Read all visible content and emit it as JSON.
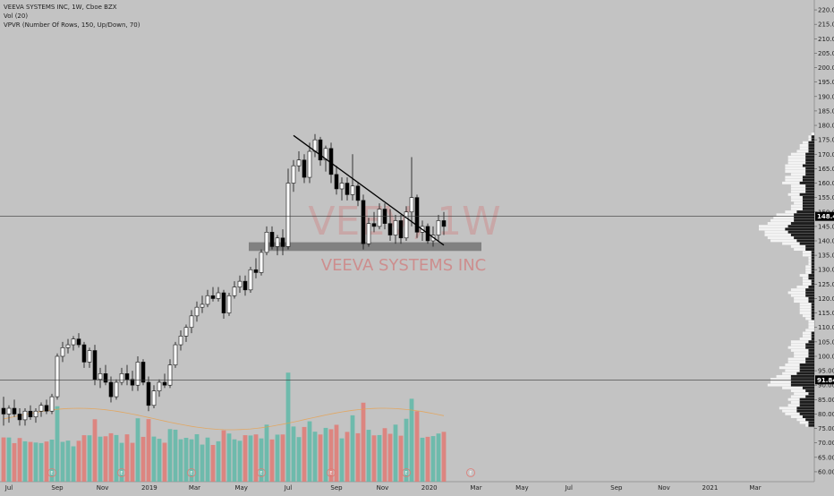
{
  "legend": {
    "line1": "VEEVA SYSTEMS INC, 1W, Cboe BZX",
    "line2": "Vol (20)",
    "line3": "VPVR (Number Of Rows, 150, Up/Down, 70)"
  },
  "watermark": {
    "symbol": "VEEV, 1W",
    "name": "VEEVA SYSTEMS INC"
  },
  "colors": {
    "background": "#c3c3c3",
    "up_candle": "#ffffff",
    "down_candle": "#000000",
    "volume_up": "#5fb8a8",
    "volume_down": "#e07a74",
    "vpvr_up": "#ffffff",
    "vpvr_down": "#000000",
    "support_zone": "#7a7a7a",
    "trendline": "#000000",
    "price_tag": "#000000",
    "volume_ma": "#e8a04c"
  },
  "chart_data": {
    "type": "candlestick",
    "interval": "1W",
    "x_ticks": [
      "Jul",
      "Sep",
      "Nov",
      "2019",
      "Mar",
      "May",
      "Jul",
      "Sep",
      "Nov",
      "2020",
      "Mar",
      "May",
      "Jul",
      "Sep",
      "Nov",
      "2021",
      "Mar"
    ],
    "y_ticks": [
      60,
      65,
      70,
      75,
      80,
      85,
      90,
      95,
      100,
      105,
      110,
      115,
      120,
      125,
      130,
      135,
      140,
      145,
      150,
      155,
      160,
      165,
      170,
      175,
      180,
      185,
      190,
      195,
      200,
      205,
      210,
      215,
      220
    ],
    "ylim": [
      57.5,
      222.5
    ],
    "price_tags": [
      148.47,
      91.84
    ],
    "support_zone": [
      136.5,
      139.5
    ],
    "trendline": {
      "from": [
        "2019-07-08",
        176.5
      ],
      "to": [
        "2020-01-20",
        138.5
      ]
    },
    "event_markers": [
      "E",
      "E",
      "E",
      "E",
      "E",
      "E",
      "E"
    ],
    "candles": [
      {
        "d": "2018-06-25",
        "o": 82,
        "h": 86,
        "l": 76,
        "c": 80
      },
      {
        "d": "2018-07-02",
        "o": 80,
        "h": 83,
        "l": 77,
        "c": 82
      },
      {
        "d": "2018-07-09",
        "o": 82,
        "h": 85,
        "l": 79,
        "c": 80
      },
      {
        "d": "2018-07-16",
        "o": 80,
        "h": 82,
        "l": 76,
        "c": 78
      },
      {
        "d": "2018-07-23",
        "o": 78,
        "h": 82,
        "l": 76,
        "c": 81
      },
      {
        "d": "2018-07-30",
        "o": 81,
        "h": 83,
        "l": 78,
        "c": 79
      },
      {
        "d": "2018-08-06",
        "o": 79,
        "h": 82,
        "l": 77,
        "c": 81
      },
      {
        "d": "2018-08-13",
        "o": 81,
        "h": 84,
        "l": 79,
        "c": 83
      },
      {
        "d": "2018-08-20",
        "o": 83,
        "h": 85,
        "l": 80,
        "c": 81
      },
      {
        "d": "2018-08-27",
        "o": 81,
        "h": 87,
        "l": 80,
        "c": 86
      },
      {
        "d": "2018-09-03",
        "o": 86,
        "h": 101,
        "l": 85,
        "c": 100
      },
      {
        "d": "2018-09-10",
        "o": 100,
        "h": 105,
        "l": 98,
        "c": 103
      },
      {
        "d": "2018-09-17",
        "o": 103,
        "h": 106,
        "l": 101,
        "c": 104
      },
      {
        "d": "2018-09-24",
        "o": 104,
        "h": 107,
        "l": 102,
        "c": 106
      },
      {
        "d": "2018-10-01",
        "o": 106,
        "h": 108,
        "l": 103,
        "c": 104
      },
      {
        "d": "2018-10-08",
        "o": 104,
        "h": 105,
        "l": 96,
        "c": 98
      },
      {
        "d": "2018-10-15",
        "o": 98,
        "h": 103,
        "l": 96,
        "c": 102
      },
      {
        "d": "2018-10-22",
        "o": 102,
        "h": 104,
        "l": 90,
        "c": 92
      },
      {
        "d": "2018-10-29",
        "o": 92,
        "h": 96,
        "l": 89,
        "c": 94
      },
      {
        "d": "2018-11-05",
        "o": 94,
        "h": 97,
        "l": 90,
        "c": 91
      },
      {
        "d": "2018-11-12",
        "o": 91,
        "h": 93,
        "l": 84,
        "c": 86
      },
      {
        "d": "2018-11-19",
        "o": 86,
        "h": 92,
        "l": 85,
        "c": 91
      },
      {
        "d": "2018-11-26",
        "o": 91,
        "h": 96,
        "l": 90,
        "c": 94
      },
      {
        "d": "2018-12-03",
        "o": 94,
        "h": 97,
        "l": 90,
        "c": 92
      },
      {
        "d": "2018-12-10",
        "o": 92,
        "h": 95,
        "l": 88,
        "c": 90
      },
      {
        "d": "2018-12-17",
        "o": 90,
        "h": 100,
        "l": 88,
        "c": 98
      },
      {
        "d": "2018-12-24",
        "o": 98,
        "h": 99,
        "l": 90,
        "c": 91
      },
      {
        "d": "2018-12-31",
        "o": 91,
        "h": 93,
        "l": 81,
        "c": 83
      },
      {
        "d": "2019-01-07",
        "o": 83,
        "h": 90,
        "l": 82,
        "c": 88
      },
      {
        "d": "2019-01-14",
        "o": 88,
        "h": 92,
        "l": 86,
        "c": 91
      },
      {
        "d": "2019-01-21",
        "o": 91,
        "h": 94,
        "l": 89,
        "c": 90
      },
      {
        "d": "2019-01-28",
        "o": 90,
        "h": 99,
        "l": 89,
        "c": 97
      },
      {
        "d": "2019-02-04",
        "o": 97,
        "h": 105,
        "l": 96,
        "c": 104
      },
      {
        "d": "2019-02-11",
        "o": 104,
        "h": 109,
        "l": 102,
        "c": 107
      },
      {
        "d": "2019-02-18",
        "o": 107,
        "h": 111,
        "l": 105,
        "c": 110
      },
      {
        "d": "2019-02-25",
        "o": 110,
        "h": 116,
        "l": 108,
        "c": 114
      },
      {
        "d": "2019-03-04",
        "o": 114,
        "h": 119,
        "l": 112,
        "c": 117
      },
      {
        "d": "2019-03-11",
        "o": 117,
        "h": 121,
        "l": 115,
        "c": 118
      },
      {
        "d": "2019-03-18",
        "o": 118,
        "h": 123,
        "l": 117,
        "c": 121
      },
      {
        "d": "2019-03-25",
        "o": 121,
        "h": 124,
        "l": 119,
        "c": 120
      },
      {
        "d": "2019-04-01",
        "o": 120,
        "h": 124,
        "l": 119,
        "c": 122
      },
      {
        "d": "2019-04-08",
        "o": 122,
        "h": 123,
        "l": 113,
        "c": 115
      },
      {
        "d": "2019-04-15",
        "o": 115,
        "h": 122,
        "l": 114,
        "c": 121
      },
      {
        "d": "2019-04-22",
        "o": 121,
        "h": 126,
        "l": 120,
        "c": 124
      },
      {
        "d": "2019-04-29",
        "o": 124,
        "h": 128,
        "l": 122,
        "c": 126
      },
      {
        "d": "2019-05-06",
        "o": 126,
        "h": 128,
        "l": 121,
        "c": 123
      },
      {
        "d": "2019-05-13",
        "o": 123,
        "h": 131,
        "l": 122,
        "c": 130
      },
      {
        "d": "2019-05-20",
        "o": 130,
        "h": 134,
        "l": 127,
        "c": 129
      },
      {
        "d": "2019-05-27",
        "o": 129,
        "h": 137,
        "l": 128,
        "c": 136
      },
      {
        "d": "2019-06-03",
        "o": 136,
        "h": 145,
        "l": 135,
        "c": 143
      },
      {
        "d": "2019-06-10",
        "o": 143,
        "h": 145,
        "l": 137,
        "c": 138
      },
      {
        "d": "2019-06-17",
        "o": 138,
        "h": 142,
        "l": 135,
        "c": 141
      },
      {
        "d": "2019-06-24",
        "o": 141,
        "h": 144,
        "l": 135,
        "c": 138
      },
      {
        "d": "2019-07-01",
        "o": 138,
        "h": 165,
        "l": 137,
        "c": 160
      },
      {
        "d": "2019-07-08",
        "o": 160,
        "h": 168,
        "l": 157,
        "c": 166
      },
      {
        "d": "2019-07-15",
        "o": 166,
        "h": 171,
        "l": 164,
        "c": 168
      },
      {
        "d": "2019-07-22",
        "o": 168,
        "h": 170,
        "l": 160,
        "c": 162
      },
      {
        "d": "2019-07-29",
        "o": 162,
        "h": 174,
        "l": 160,
        "c": 171
      },
      {
        "d": "2019-08-05",
        "o": 171,
        "h": 177,
        "l": 169,
        "c": 175
      },
      {
        "d": "2019-08-12",
        "o": 175,
        "h": 176,
        "l": 166,
        "c": 168
      },
      {
        "d": "2019-08-19",
        "o": 168,
        "h": 173,
        "l": 164,
        "c": 172
      },
      {
        "d": "2019-08-26",
        "o": 172,
        "h": 174,
        "l": 160,
        "c": 163
      },
      {
        "d": "2019-09-02",
        "o": 163,
        "h": 166,
        "l": 156,
        "c": 158
      },
      {
        "d": "2019-09-09",
        "o": 158,
        "h": 162,
        "l": 154,
        "c": 160
      },
      {
        "d": "2019-09-16",
        "o": 160,
        "h": 162,
        "l": 154,
        "c": 156
      },
      {
        "d": "2019-09-23",
        "o": 156,
        "h": 170,
        "l": 154,
        "c": 159
      },
      {
        "d": "2019-09-30",
        "o": 159,
        "h": 160,
        "l": 152,
        "c": 154
      },
      {
        "d": "2019-10-07",
        "o": 154,
        "h": 156,
        "l": 137,
        "c": 139
      },
      {
        "d": "2019-10-14",
        "o": 139,
        "h": 148,
        "l": 138,
        "c": 146
      },
      {
        "d": "2019-10-21",
        "o": 146,
        "h": 150,
        "l": 143,
        "c": 145
      },
      {
        "d": "2019-10-28",
        "o": 145,
        "h": 153,
        "l": 144,
        "c": 151
      },
      {
        "d": "2019-11-04",
        "o": 151,
        "h": 153,
        "l": 144,
        "c": 146
      },
      {
        "d": "2019-11-11",
        "o": 146,
        "h": 151,
        "l": 140,
        "c": 142
      },
      {
        "d": "2019-11-18",
        "o": 142,
        "h": 149,
        "l": 139,
        "c": 147
      },
      {
        "d": "2019-11-25",
        "o": 147,
        "h": 149,
        "l": 139,
        "c": 141
      },
      {
        "d": "2019-12-02",
        "o": 141,
        "h": 152,
        "l": 140,
        "c": 150
      },
      {
        "d": "2019-12-09",
        "o": 150,
        "h": 169,
        "l": 145,
        "c": 155
      },
      {
        "d": "2019-12-16",
        "o": 155,
        "h": 156,
        "l": 141,
        "c": 143
      },
      {
        "d": "2019-12-23",
        "o": 143,
        "h": 147,
        "l": 140,
        "c": 145
      },
      {
        "d": "2019-12-30",
        "o": 145,
        "h": 146,
        "l": 139,
        "c": 140
      },
      {
        "d": "2020-01-06",
        "o": 140,
        "h": 145,
        "l": 138,
        "c": 142
      },
      {
        "d": "2020-01-13",
        "o": 142,
        "h": 149,
        "l": 140,
        "c": 147
      },
      {
        "d": "2020-01-20",
        "o": 147,
        "h": 150,
        "l": 142,
        "c": 145
      }
    ]
  }
}
